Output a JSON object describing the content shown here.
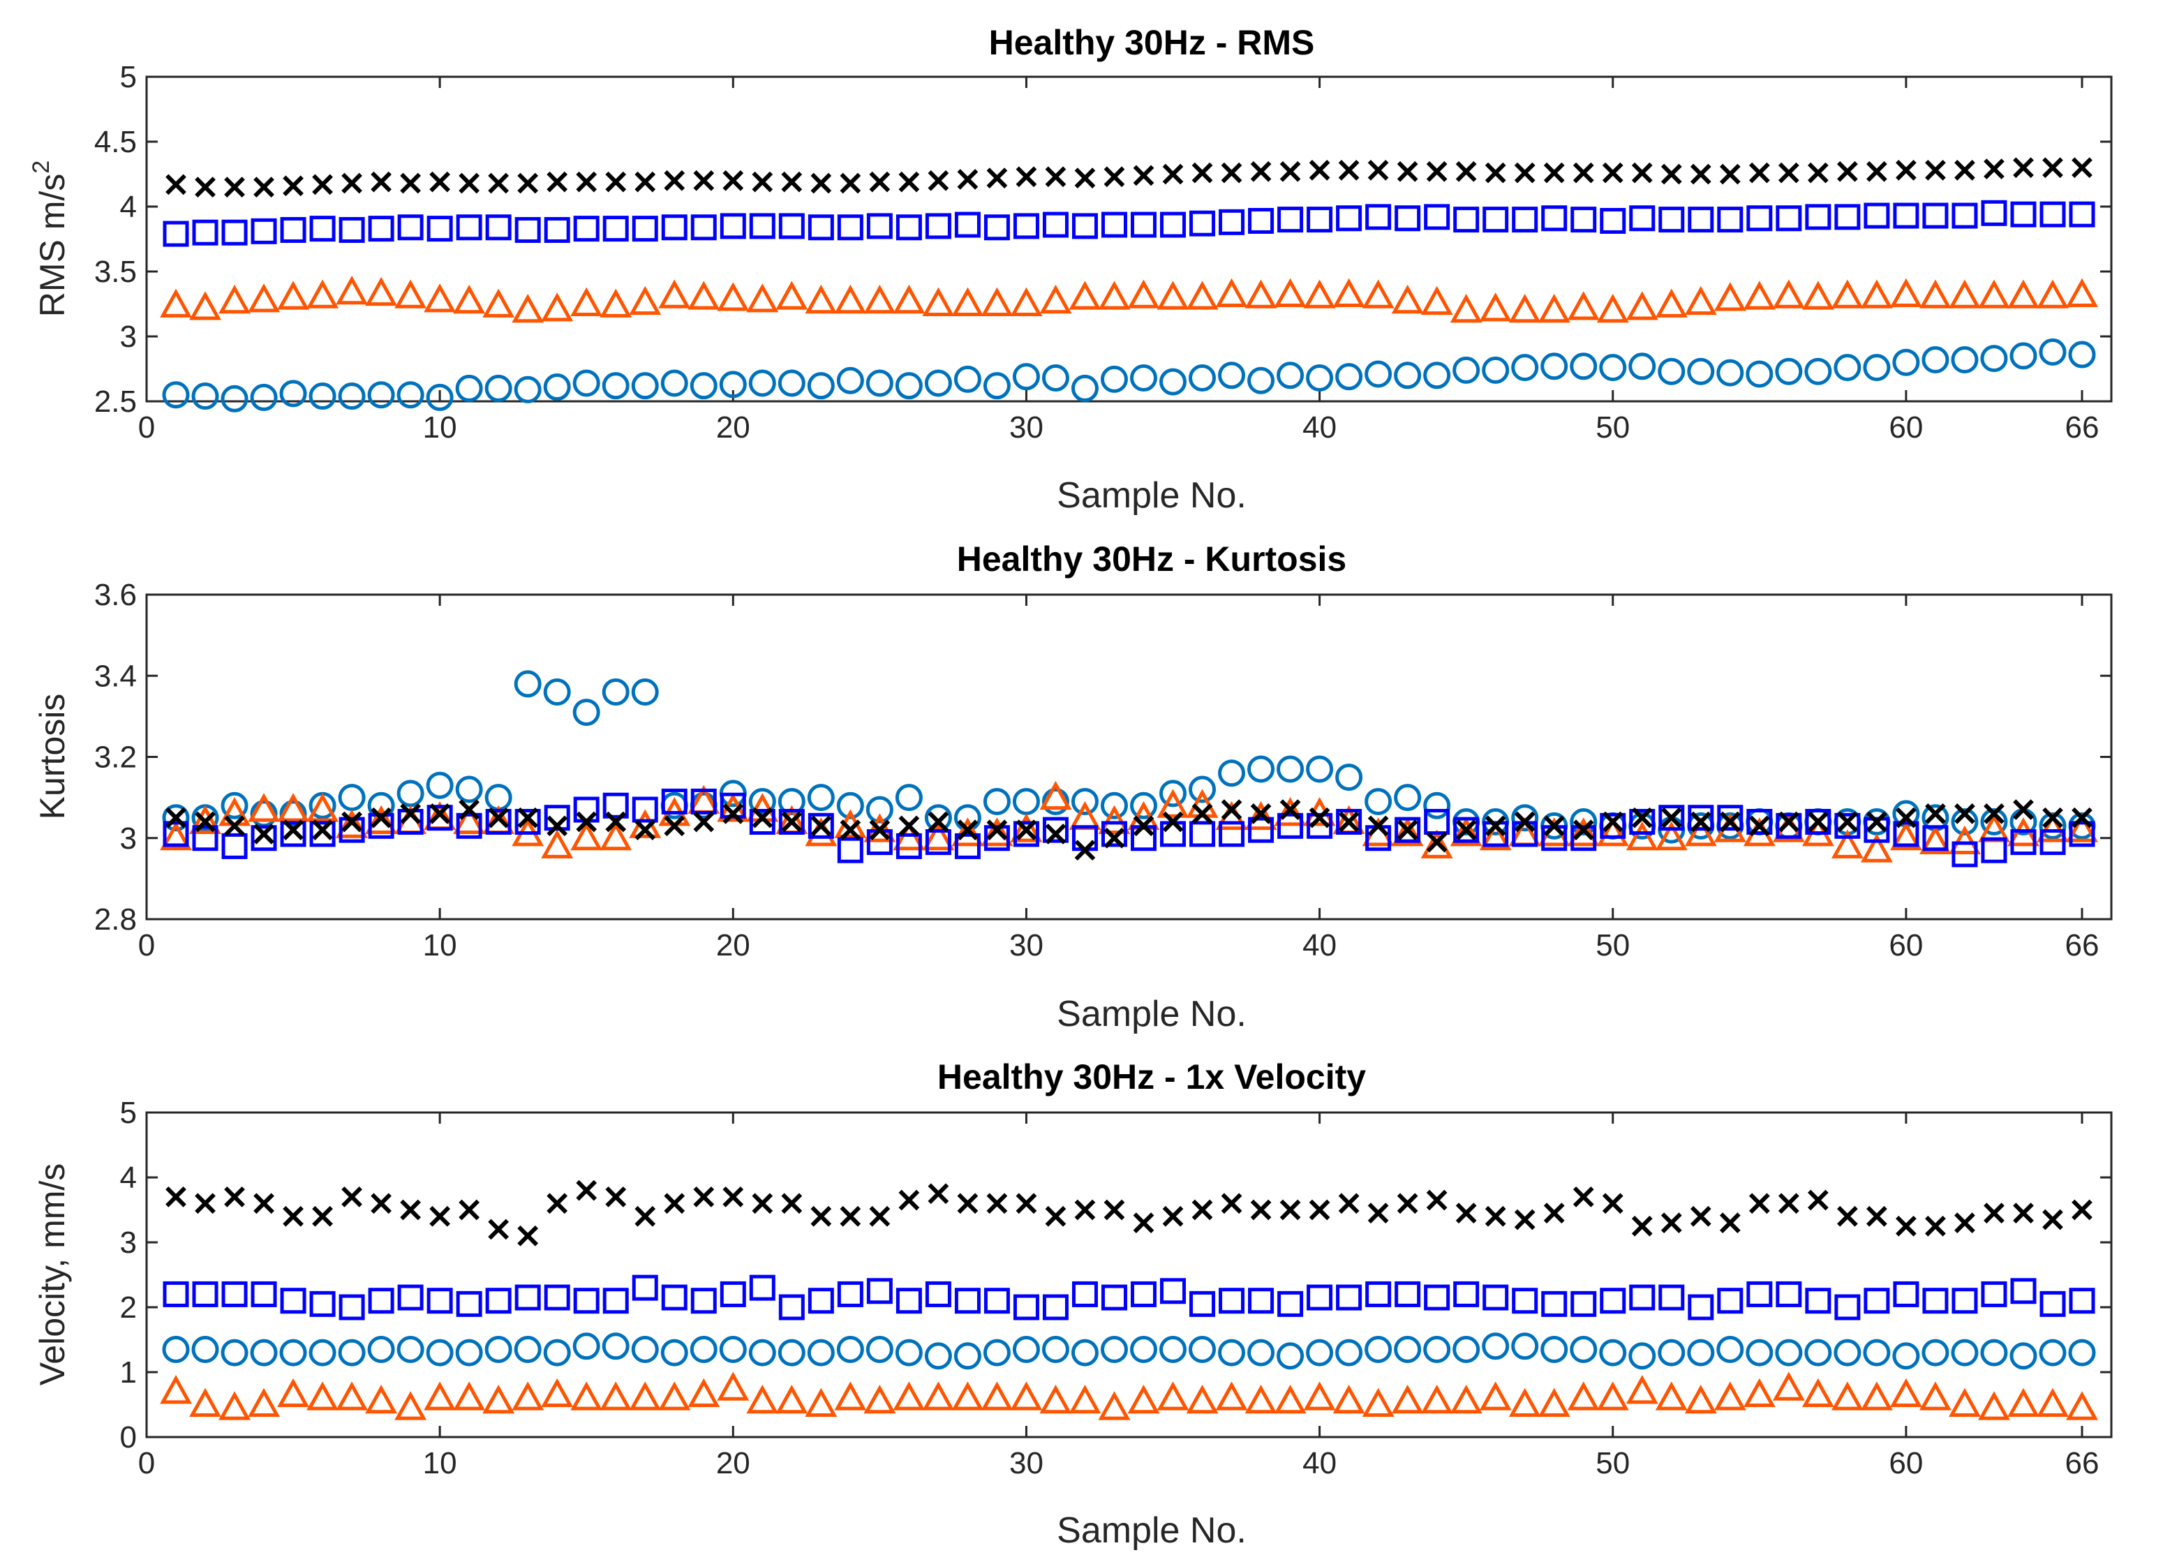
{
  "colors": {
    "s1": "#000000",
    "s2": "#0000FF",
    "s3": "#FF5400",
    "s4": "#0072BD"
  },
  "chart_data": [
    {
      "type": "scatter",
      "title": "Healthy 30Hz - RMS",
      "xlabel": "Sample No.",
      "ylabel": "RMS m/s",
      "ylabel_sup": "2",
      "xlim": [
        0,
        67
      ],
      "ylim": [
        2.5,
        5
      ],
      "xticks": [
        0,
        10,
        20,
        30,
        40,
        50,
        60,
        66
      ],
      "xtick_labels": [
        "0",
        "10",
        "20",
        "30",
        "40",
        "50",
        "60",
        "66"
      ],
      "yticks": [
        2.5,
        3,
        3.5,
        4,
        4.5,
        5
      ],
      "ytick_labels": [
        "2.5",
        "3",
        "3.5",
        "4",
        "4.5",
        "5"
      ],
      "series": [
        {
          "name": "s1",
          "marker": "x",
          "values": [
            4.17,
            4.15,
            4.15,
            4.15,
            4.16,
            4.17,
            4.18,
            4.19,
            4.18,
            4.19,
            4.18,
            4.18,
            4.18,
            4.19,
            4.19,
            4.19,
            4.19,
            4.2,
            4.2,
            4.2,
            4.19,
            4.19,
            4.18,
            4.18,
            4.19,
            4.19,
            4.2,
            4.21,
            4.22,
            4.23,
            4.23,
            4.22,
            4.23,
            4.24,
            4.25,
            4.26,
            4.26,
            4.27,
            4.27,
            4.28,
            4.28,
            4.28,
            4.27,
            4.27,
            4.27,
            4.26,
            4.26,
            4.26,
            4.26,
            4.26,
            4.26,
            4.25,
            4.25,
            4.25,
            4.26,
            4.26,
            4.26,
            4.27,
            4.27,
            4.28,
            4.28,
            4.28,
            4.29,
            4.3,
            4.3,
            4.3
          ]
        },
        {
          "name": "s2",
          "marker": "square",
          "values": [
            3.79,
            3.8,
            3.8,
            3.81,
            3.82,
            3.83,
            3.82,
            3.83,
            3.84,
            3.83,
            3.84,
            3.84,
            3.82,
            3.82,
            3.83,
            3.83,
            3.83,
            3.84,
            3.84,
            3.85,
            3.85,
            3.85,
            3.84,
            3.84,
            3.85,
            3.84,
            3.85,
            3.86,
            3.84,
            3.85,
            3.86,
            3.85,
            3.86,
            3.86,
            3.86,
            3.87,
            3.88,
            3.89,
            3.9,
            3.9,
            3.91,
            3.92,
            3.91,
            3.92,
            3.9,
            3.9,
            3.9,
            3.91,
            3.9,
            3.89,
            3.91,
            3.9,
            3.9,
            3.9,
            3.91,
            3.91,
            3.92,
            3.92,
            3.93,
            3.93,
            3.93,
            3.93,
            3.95,
            3.94,
            3.94,
            3.94
          ]
        },
        {
          "name": "s3",
          "marker": "triangle",
          "values": [
            3.24,
            3.22,
            3.27,
            3.28,
            3.3,
            3.31,
            3.34,
            3.33,
            3.31,
            3.28,
            3.27,
            3.24,
            3.2,
            3.21,
            3.25,
            3.24,
            3.26,
            3.31,
            3.3,
            3.29,
            3.28,
            3.3,
            3.27,
            3.27,
            3.27,
            3.27,
            3.25,
            3.25,
            3.25,
            3.25,
            3.27,
            3.3,
            3.3,
            3.31,
            3.3,
            3.3,
            3.32,
            3.31,
            3.32,
            3.31,
            3.32,
            3.31,
            3.27,
            3.26,
            3.2,
            3.21,
            3.2,
            3.2,
            3.22,
            3.2,
            3.22,
            3.24,
            3.26,
            3.29,
            3.3,
            3.31,
            3.3,
            3.31,
            3.31,
            3.32,
            3.31,
            3.31,
            3.31,
            3.31,
            3.31,
            3.32
          ]
        },
        {
          "name": "s4",
          "marker": "circle",
          "values": [
            2.55,
            2.54,
            2.52,
            2.53,
            2.56,
            2.54,
            2.54,
            2.55,
            2.55,
            2.53,
            2.6,
            2.6,
            2.59,
            2.61,
            2.64,
            2.62,
            2.62,
            2.64,
            2.62,
            2.63,
            2.64,
            2.64,
            2.62,
            2.66,
            2.64,
            2.62,
            2.64,
            2.67,
            2.62,
            2.69,
            2.68,
            2.6,
            2.67,
            2.68,
            2.65,
            2.68,
            2.7,
            2.66,
            2.7,
            2.68,
            2.69,
            2.71,
            2.7,
            2.7,
            2.74,
            2.74,
            2.76,
            2.77,
            2.77,
            2.76,
            2.77,
            2.73,
            2.73,
            2.72,
            2.71,
            2.73,
            2.73,
            2.76,
            2.76,
            2.8,
            2.82,
            2.82,
            2.83,
            2.85,
            2.88,
            2.86
          ]
        }
      ]
    },
    {
      "type": "scatter",
      "title": "Healthy 30Hz - Kurtosis",
      "xlabel": "Sample No.",
      "ylabel": "Kurtosis",
      "xlim": [
        0,
        67
      ],
      "ylim": [
        2.8,
        3.6
      ],
      "xticks": [
        0,
        10,
        20,
        30,
        40,
        50,
        60,
        66
      ],
      "xtick_labels": [
        "0",
        "10",
        "20",
        "30",
        "40",
        "50",
        "60",
        "66"
      ],
      "yticks": [
        2.8,
        3,
        3.2,
        3.4,
        3.6
      ],
      "ytick_labels": [
        "2.8",
        "3",
        "3.2",
        "3.4",
        "3.6"
      ],
      "series": [
        {
          "name": "s1",
          "marker": "x",
          "values": [
            3.05,
            3.04,
            3.03,
            3.01,
            3.02,
            3.02,
            3.04,
            3.05,
            3.06,
            3.06,
            3.07,
            3.05,
            3.05,
            3.03,
            3.04,
            3.04,
            3.02,
            3.03,
            3.04,
            3.06,
            3.05,
            3.04,
            3.03,
            3.02,
            3.02,
            3.03,
            3.04,
            3.02,
            3.02,
            3.02,
            3.01,
            2.97,
            3.0,
            3.03,
            3.04,
            3.06,
            3.07,
            3.06,
            3.07,
            3.05,
            3.04,
            3.03,
            3.02,
            2.99,
            3.02,
            3.03,
            3.04,
            3.03,
            3.02,
            3.04,
            3.05,
            3.05,
            3.04,
            3.04,
            3.03,
            3.04,
            3.04,
            3.04,
            3.04,
            3.05,
            3.06,
            3.06,
            3.06,
            3.07,
            3.05,
            3.05
          ]
        },
        {
          "name": "s2",
          "marker": "square",
          "values": [
            3.01,
            3.0,
            2.98,
            3.0,
            3.01,
            3.01,
            3.02,
            3.03,
            3.04,
            3.05,
            3.03,
            3.04,
            3.04,
            3.05,
            3.07,
            3.08,
            3.07,
            3.09,
            3.09,
            3.08,
            3.04,
            3.04,
            3.03,
            2.97,
            2.99,
            2.98,
            2.99,
            2.98,
            3.0,
            3.01,
            3.02,
            3.0,
            3.01,
            3.0,
            3.01,
            3.01,
            3.01,
            3.02,
            3.03,
            3.03,
            3.04,
            3.0,
            3.02,
            3.04,
            3.02,
            3.01,
            3.01,
            3.0,
            3.0,
            3.03,
            3.04,
            3.05,
            3.05,
            3.05,
            3.04,
            3.03,
            3.04,
            3.03,
            3.02,
            3.01,
            3.0,
            2.96,
            2.97,
            2.99,
            2.99,
            3.01
          ]
        },
        {
          "name": "s3",
          "marker": "triangle",
          "values": [
            3.0,
            3.04,
            3.06,
            3.07,
            3.07,
            3.07,
            3.03,
            3.04,
            3.04,
            3.05,
            3.04,
            3.04,
            3.01,
            2.98,
            3.0,
            3.0,
            3.03,
            3.06,
            3.09,
            3.07,
            3.07,
            3.04,
            3.01,
            3.03,
            3.02,
            3.0,
            3.0,
            3.01,
            3.01,
            3.02,
            3.1,
            3.05,
            3.04,
            3.05,
            3.08,
            3.08,
            3.05,
            3.05,
            3.06,
            3.06,
            3.04,
            3.01,
            3.01,
            2.98,
            3.01,
            3.0,
            3.01,
            3.01,
            3.01,
            3.01,
            3.0,
            3.0,
            3.01,
            3.02,
            3.01,
            3.02,
            3.01,
            2.98,
            2.97,
            3.0,
            2.99,
            2.99,
            3.02,
            3.01,
            3.02,
            3.02
          ]
        },
        {
          "name": "s4",
          "marker": "circle",
          "values": [
            3.05,
            3.05,
            3.08,
            3.06,
            3.06,
            3.08,
            3.1,
            3.08,
            3.11,
            3.13,
            3.12,
            3.1,
            3.38,
            3.36,
            3.31,
            3.36,
            3.36,
            3.08,
            3.08,
            3.11,
            3.09,
            3.09,
            3.1,
            3.08,
            3.07,
            3.1,
            3.05,
            3.05,
            3.09,
            3.09,
            3.09,
            3.09,
            3.08,
            3.08,
            3.11,
            3.12,
            3.16,
            3.17,
            3.17,
            3.17,
            3.15,
            3.09,
            3.1,
            3.08,
            3.04,
            3.04,
            3.05,
            3.03,
            3.04,
            3.03,
            3.03,
            3.02,
            3.03,
            3.03,
            3.04,
            3.03,
            3.04,
            3.04,
            3.04,
            3.06,
            3.05,
            3.04,
            3.04,
            3.04,
            3.03,
            3.03
          ]
        }
      ]
    },
    {
      "type": "scatter",
      "title": "Healthy 30Hz - 1x Velocity",
      "xlabel": "Sample No.",
      "ylabel": "Velocity, mm/s",
      "xlim": [
        0,
        67
      ],
      "ylim": [
        0,
        5
      ],
      "xticks": [
        0,
        10,
        20,
        30,
        40,
        50,
        60,
        66
      ],
      "xtick_labels": [
        "0",
        "10",
        "20",
        "30",
        "40",
        "50",
        "60",
        "66"
      ],
      "yticks": [
        0,
        1,
        2,
        3,
        4,
        5
      ],
      "ytick_labels": [
        "0",
        "1",
        "2",
        "3",
        "4",
        "5"
      ],
      "series": [
        {
          "name": "s1",
          "marker": "x",
          "values": [
            3.7,
            3.6,
            3.7,
            3.6,
            3.4,
            3.4,
            3.7,
            3.6,
            3.5,
            3.4,
            3.5,
            3.2,
            3.1,
            3.6,
            3.8,
            3.7,
            3.4,
            3.6,
            3.7,
            3.7,
            3.6,
            3.6,
            3.4,
            3.4,
            3.4,
            3.65,
            3.75,
            3.6,
            3.6,
            3.6,
            3.4,
            3.5,
            3.5,
            3.3,
            3.4,
            3.5,
            3.6,
            3.5,
            3.5,
            3.5,
            3.6,
            3.45,
            3.6,
            3.65,
            3.45,
            3.4,
            3.35,
            3.45,
            3.7,
            3.6,
            3.25,
            3.3,
            3.4,
            3.3,
            3.6,
            3.6,
            3.65,
            3.4,
            3.4,
            3.25,
            3.25,
            3.3,
            3.45,
            3.45,
            3.35,
            3.5
          ]
        },
        {
          "name": "s2",
          "marker": "square",
          "values": [
            2.2,
            2.2,
            2.2,
            2.2,
            2.1,
            2.05,
            2.0,
            2.1,
            2.15,
            2.1,
            2.05,
            2.1,
            2.15,
            2.15,
            2.1,
            2.1,
            2.3,
            2.15,
            2.1,
            2.2,
            2.3,
            2.0,
            2.1,
            2.2,
            2.25,
            2.1,
            2.2,
            2.1,
            2.1,
            2.0,
            2.0,
            2.2,
            2.15,
            2.2,
            2.25,
            2.05,
            2.1,
            2.1,
            2.05,
            2.15,
            2.15,
            2.2,
            2.2,
            2.15,
            2.2,
            2.15,
            2.1,
            2.05,
            2.05,
            2.1,
            2.15,
            2.15,
            2.0,
            2.1,
            2.2,
            2.2,
            2.1,
            2.0,
            2.1,
            2.2,
            2.1,
            2.1,
            2.2,
            2.25,
            2.05,
            2.1
          ]
        },
        {
          "name": "s3",
          "marker": "triangle",
          "values": [
            0.7,
            0.5,
            0.45,
            0.5,
            0.65,
            0.6,
            0.6,
            0.55,
            0.45,
            0.6,
            0.6,
            0.55,
            0.6,
            0.65,
            0.6,
            0.6,
            0.6,
            0.6,
            0.65,
            0.75,
            0.55,
            0.55,
            0.5,
            0.6,
            0.55,
            0.6,
            0.6,
            0.6,
            0.6,
            0.6,
            0.55,
            0.55,
            0.45,
            0.55,
            0.6,
            0.55,
            0.6,
            0.55,
            0.55,
            0.6,
            0.55,
            0.5,
            0.55,
            0.55,
            0.55,
            0.6,
            0.5,
            0.5,
            0.6,
            0.6,
            0.7,
            0.6,
            0.55,
            0.6,
            0.65,
            0.75,
            0.65,
            0.6,
            0.6,
            0.65,
            0.6,
            0.5,
            0.45,
            0.5,
            0.5,
            0.45
          ]
        },
        {
          "name": "s4",
          "marker": "circle",
          "values": [
            1.35,
            1.35,
            1.3,
            1.3,
            1.3,
            1.3,
            1.3,
            1.35,
            1.35,
            1.3,
            1.3,
            1.35,
            1.35,
            1.3,
            1.4,
            1.4,
            1.35,
            1.3,
            1.35,
            1.35,
            1.3,
            1.3,
            1.3,
            1.35,
            1.35,
            1.3,
            1.25,
            1.25,
            1.3,
            1.35,
            1.35,
            1.3,
            1.35,
            1.35,
            1.35,
            1.35,
            1.3,
            1.3,
            1.25,
            1.3,
            1.3,
            1.35,
            1.35,
            1.35,
            1.35,
            1.4,
            1.4,
            1.35,
            1.35,
            1.3,
            1.25,
            1.3,
            1.3,
            1.35,
            1.3,
            1.3,
            1.3,
            1.3,
            1.3,
            1.25,
            1.3,
            1.3,
            1.3,
            1.25,
            1.3,
            1.3
          ]
        }
      ]
    }
  ]
}
